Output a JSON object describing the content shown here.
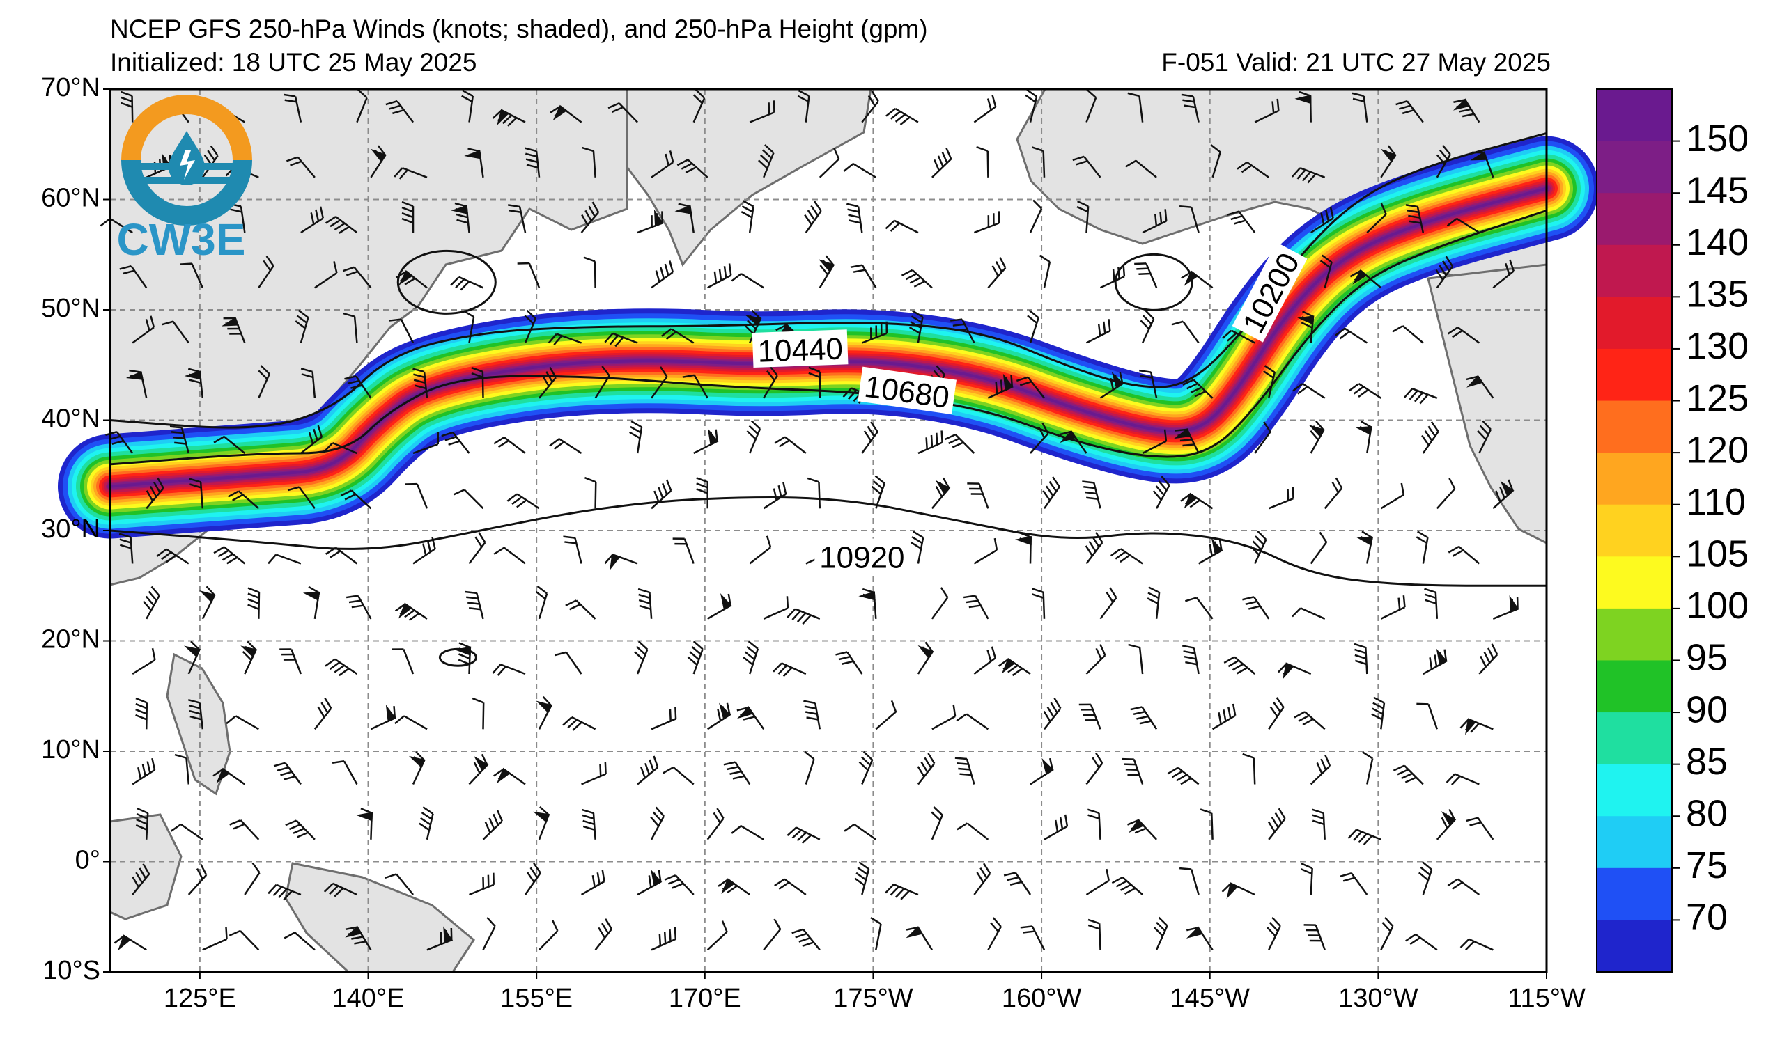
{
  "header": {
    "title": "NCEP GFS 250-hPa Winds (knots; shaded), and 250-hPa Height (gpm)",
    "initialized": "Initialized: 18 UTC 25 May 2025",
    "valid": "F-051  Valid: 21 UTC 27 May 2025"
  },
  "logo": {
    "text": "CW3E",
    "icon": "cw3e-drop-logo-icon"
  },
  "map": {
    "lat_labels": [
      "70°N",
      "60°N",
      "50°N",
      "40°N",
      "30°N",
      "20°N",
      "10°N",
      "0°",
      "10°S"
    ],
    "lon_labels": [
      "125°E",
      "140°E",
      "155°E",
      "170°E",
      "175°W",
      "160°W",
      "145°W",
      "130°W",
      "115°W"
    ],
    "contour_labels": [
      "10440",
      "10680",
      "10920",
      "10200"
    ],
    "jet_axis": [
      [
        117,
        34
      ],
      [
        130,
        35
      ],
      [
        137,
        35.5
      ],
      [
        141,
        40
      ],
      [
        145,
        43
      ],
      [
        155,
        45
      ],
      [
        165,
        45.5
      ],
      [
        175,
        45
      ],
      [
        -175,
        45.5
      ],
      [
        -165,
        44
      ],
      [
        -157,
        41
      ],
      [
        -150,
        39
      ],
      [
        -146,
        39
      ],
      [
        -143,
        42
      ],
      [
        -138,
        50
      ],
      [
        -133,
        55
      ],
      [
        -126,
        58
      ],
      [
        -115,
        61
      ]
    ],
    "height_contours": [
      {
        "value": 10440,
        "points": [
          [
            117,
            40
          ],
          [
            130,
            39
          ],
          [
            137,
            41
          ],
          [
            142,
            46
          ],
          [
            150,
            48
          ],
          [
            160,
            48.5
          ],
          [
            170,
            48.5
          ],
          [
            -175,
            49
          ],
          [
            -165,
            48
          ],
          [
            -158,
            45
          ],
          [
            -152,
            43
          ],
          [
            -147,
            43
          ],
          [
            -142,
            48
          ],
          [
            -137,
            55
          ],
          [
            -132,
            60
          ],
          [
            -126,
            63
          ],
          [
            -115,
            66
          ]
        ]
      },
      {
        "value": 10680,
        "points": [
          [
            117,
            36
          ],
          [
            130,
            37
          ],
          [
            138,
            37
          ],
          [
            142,
            41
          ],
          [
            148,
            44
          ],
          [
            160,
            44
          ],
          [
            172,
            43
          ],
          [
            -175,
            42.5
          ],
          [
            -165,
            41
          ],
          [
            -157,
            38
          ],
          [
            -150,
            36.5
          ],
          [
            -145,
            37
          ],
          [
            -141,
            41
          ],
          [
            -136,
            48
          ],
          [
            -131,
            53
          ],
          [
            -124,
            56
          ],
          [
            -115,
            59
          ]
        ]
      },
      {
        "value": 10920,
        "points": [
          [
            117,
            30
          ],
          [
            130,
            29
          ],
          [
            140,
            28
          ],
          [
            150,
            30
          ],
          [
            160,
            32
          ],
          [
            170,
            33
          ],
          [
            -178,
            33
          ],
          [
            -168,
            31
          ],
          [
            -158,
            29
          ],
          [
            -150,
            30
          ],
          [
            -142,
            29
          ],
          [
            -136,
            26
          ],
          [
            -128,
            25
          ],
          [
            -115,
            25
          ]
        ]
      }
    ]
  },
  "colorbar": {
    "labels": [
      "150",
      "145",
      "140",
      "135",
      "130",
      "125",
      "120",
      "110",
      "105",
      "100",
      "95",
      "90",
      "85",
      "80",
      "75",
      "70"
    ],
    "colors": [
      "#6a1a8f",
      "#7d1e86",
      "#9a1a6e",
      "#c0184f",
      "#e21a2b",
      "#ff2416",
      "#ff6e1e",
      "#ffa61f",
      "#ffd21f",
      "#fdfa1f",
      "#7ed321",
      "#20c227",
      "#1fdfa0",
      "#1ff3f0",
      "#1fcdf5",
      "#1f50f5",
      "#1f25cc"
    ]
  }
}
